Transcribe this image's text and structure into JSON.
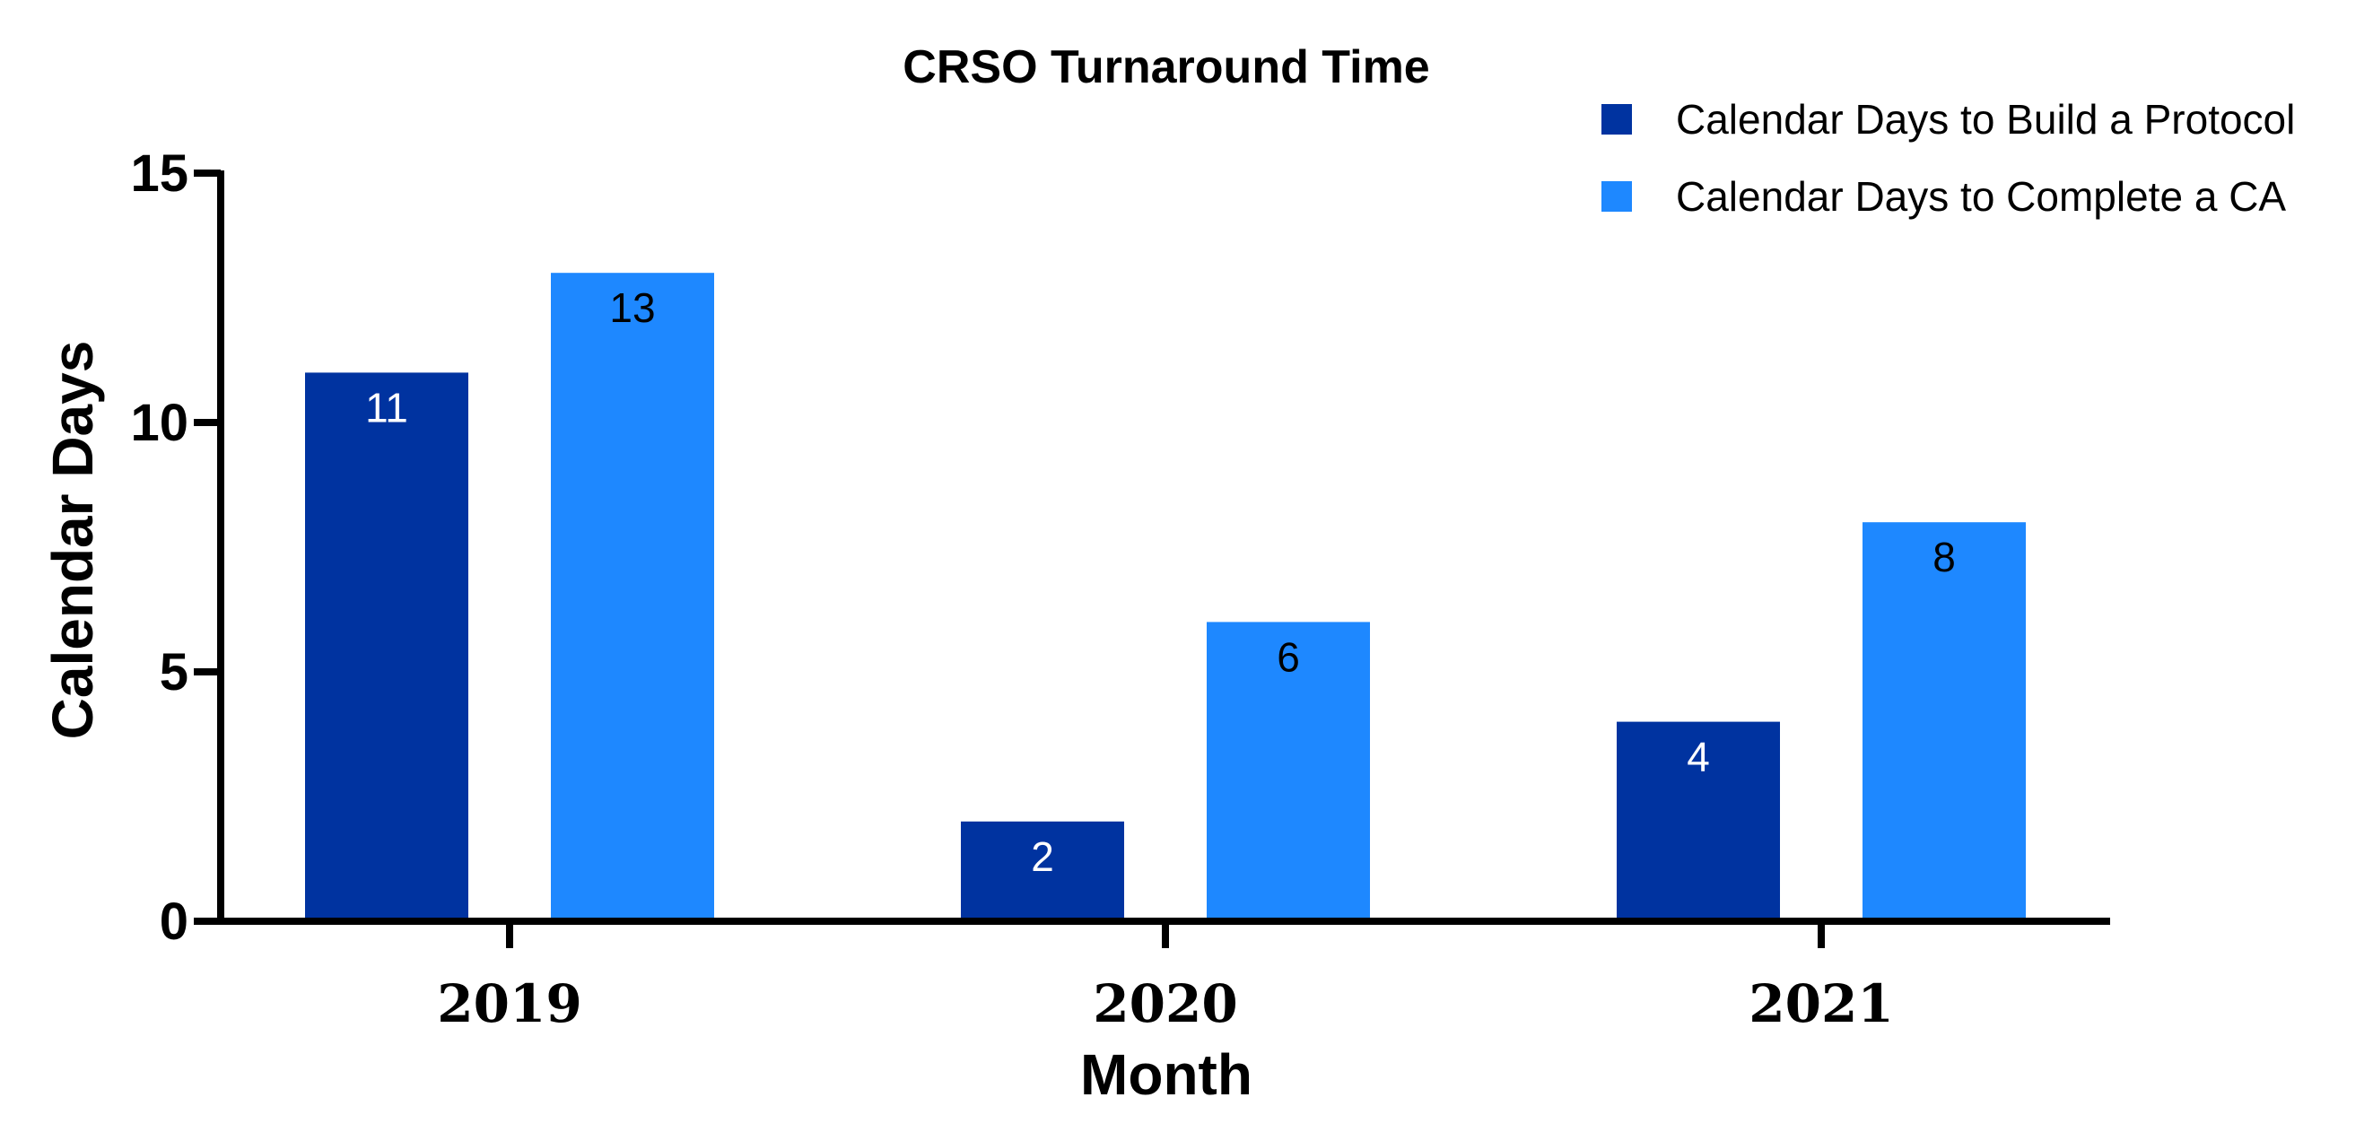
{
  "chart_data": {
    "type": "bar",
    "title": "CRSO Turnaround Time",
    "xlabel": "Month",
    "ylabel": "Calendar Days",
    "categories": [
      "2019",
      "2020",
      "2021"
    ],
    "series": [
      {
        "name": "Calendar Days to Build a Protocol",
        "values": [
          11,
          2,
          4
        ],
        "color": "#0033a0",
        "label_color": "#ffffff"
      },
      {
        "name": "Calendar Days to Complete a CA",
        "values": [
          13,
          6,
          8
        ],
        "color": "#1e88ff",
        "label_color": "#000000"
      }
    ],
    "ylim": [
      0,
      15
    ],
    "yticks": [
      0,
      5,
      10,
      15
    ],
    "legend_position": "top-right",
    "grid": false
  }
}
